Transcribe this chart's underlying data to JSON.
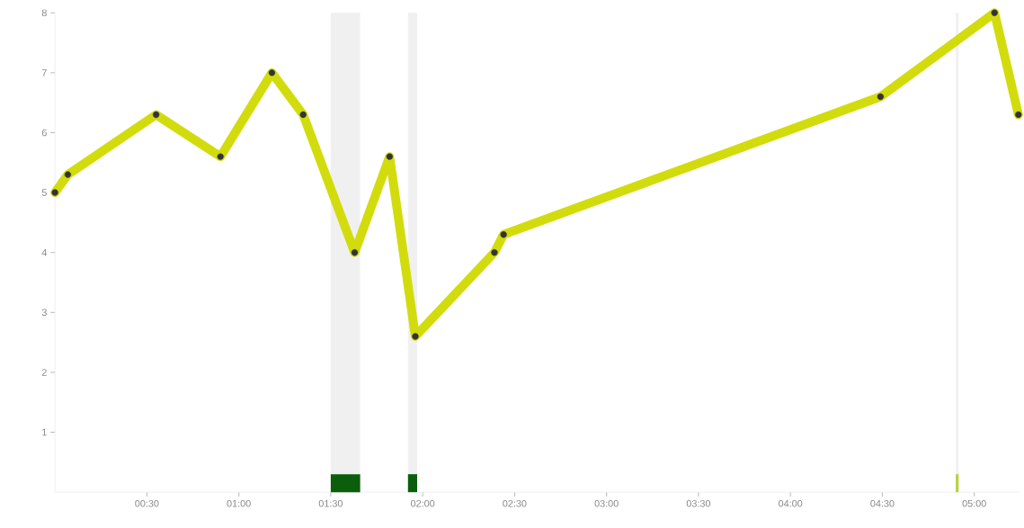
{
  "chart_data": {
    "type": "line",
    "x": [
      0.0,
      0.07,
      0.55,
      0.9,
      1.18,
      1.35,
      1.63,
      1.82,
      1.96,
      2.39,
      2.44,
      4.49,
      5.11,
      5.24
    ],
    "series": [
      {
        "color": "#d2dc0c",
        "values": [
          5.0,
          5.3,
          6.3,
          5.6,
          7.0,
          6.3,
          4.0,
          5.6,
          2.6,
          4.0,
          4.3,
          6.6,
          8.0,
          6.3
        ]
      },
      {
        "type": "bar",
        "x": [
          1.58,
          1.945,
          4.907
        ],
        "colors": [
          "#0b5e0b",
          "#0b5e0b",
          "#b5d334"
        ],
        "values": [
          0.3,
          0.3,
          0.3
        ]
      }
    ],
    "marker": "circle",
    "xlim": [
      0,
      5.25
    ],
    "ylim": [
      0,
      8
    ],
    "xticks": [
      {
        "value": 0.5,
        "label": "00:30"
      },
      {
        "value": 1,
        "label": "01:00"
      },
      {
        "value": 1.5,
        "label": "01:30"
      },
      {
        "value": 2,
        "label": "02:00"
      },
      {
        "value": 2.5,
        "label": "02:30"
      },
      {
        "value": 3,
        "label": "03:00"
      },
      {
        "value": 3.5,
        "label": "03:30"
      },
      {
        "value": 4,
        "label": "04:00"
      },
      {
        "value": 4.5,
        "label": "04:30"
      },
      {
        "value": 5,
        "label": "05:00"
      }
    ],
    "yticks": [
      1,
      2,
      3,
      4,
      5,
      6,
      7,
      8
    ],
    "bands": [
      {
        "axis": "x",
        "from": 1.5,
        "to": 1.66,
        "color": "#f0f0f0"
      },
      {
        "axis": "x",
        "from": 1.92,
        "to": 1.97,
        "color": "#f0f0f0"
      },
      {
        "axis": "x",
        "from": 4.9,
        "to": 4.915,
        "color": "#f0f0f0"
      }
    ],
    "grid": false
  }
}
